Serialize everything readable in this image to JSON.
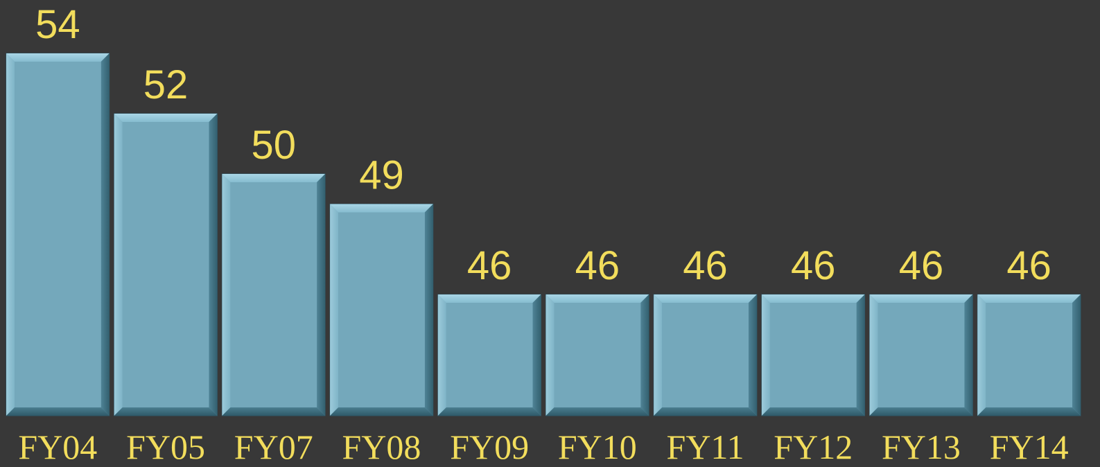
{
  "chart_data": {
    "type": "bar",
    "categories": [
      "FY04",
      "FY05",
      "FY07",
      "FY08",
      "FY09",
      "FY10",
      "FY11",
      "FY12",
      "FY13",
      "FY14"
    ],
    "values": [
      54,
      52,
      50,
      49,
      46,
      46,
      46,
      46,
      46,
      46
    ],
    "title": "",
    "xlabel": "",
    "ylabel": "",
    "data_labels": true,
    "grid": false,
    "colors": {
      "background": "#383838",
      "bar_face": "#74a8bb",
      "bar_bevel_light": "#9bcbdc",
      "bar_bevel_dark": "#3c6a7c",
      "label": "#f2dd5c"
    }
  }
}
